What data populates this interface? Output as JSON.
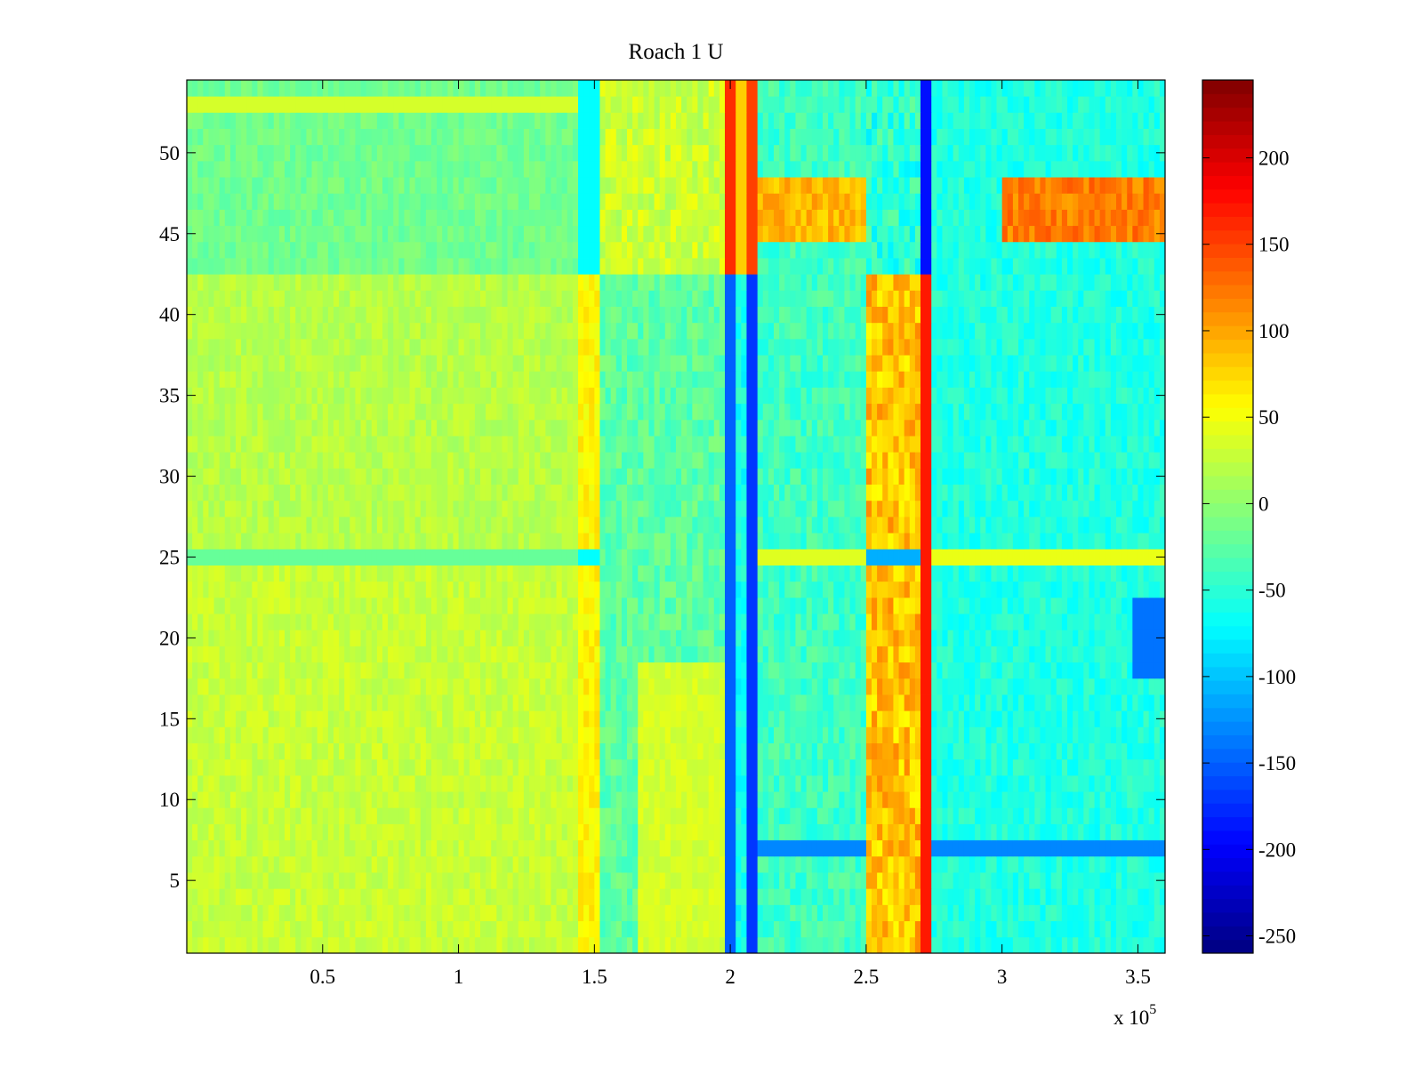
{
  "chart_data": {
    "type": "heatmap",
    "title": "Roach 1 U",
    "xlabel": "",
    "ylabel": "",
    "x_exponent_label": "x 10",
    "x_exponent_power": "5",
    "xlim": [
      0,
      360000
    ],
    "ylim": [
      0.5,
      54.5
    ],
    "x_ticks": [
      50000,
      100000,
      150000,
      200000,
      250000,
      300000,
      350000
    ],
    "x_tick_labels": [
      "0.5",
      "1",
      "1.5",
      "2",
      "2.5",
      "3",
      "3.5"
    ],
    "y_ticks": [
      5,
      10,
      15,
      20,
      25,
      30,
      35,
      40,
      45,
      50
    ],
    "y_tick_labels": [
      "5",
      "10",
      "15",
      "20",
      "25",
      "30",
      "35",
      "40",
      "45",
      "50"
    ],
    "colorbar": {
      "colormap": "jet",
      "clim": [
        -260,
        245
      ],
      "ticks": [
        -250,
        -200,
        -150,
        -100,
        -50,
        0,
        50,
        100,
        150,
        200
      ],
      "tick_labels": [
        "-250",
        "-200",
        "-150",
        "-100",
        "-50",
        "0",
        "50",
        "100",
        "150",
        "200"
      ]
    },
    "rows": 54,
    "segments": [
      {
        "x_range": [
          0,
          145000
        ],
        "typical_value": 20,
        "description": "near-uniform yellow-green with thin periodic vertical stripes"
      },
      {
        "x_range": [
          145000,
          153000
        ],
        "typical_value": 60,
        "description": "orange/yellow band, blue on top rows"
      },
      {
        "x_range": [
          153000,
          198000
        ],
        "typical_value": -20,
        "description": "mixed cyan/green, yellow in upper rows"
      },
      {
        "x_range": [
          198000,
          210000
        ],
        "typical_value": -120,
        "description": "dark blue/red vertical streaks"
      },
      {
        "x_range": [
          210000,
          250000
        ],
        "typical_value": -40,
        "description": "cyan/green, orange rows near 46-48"
      },
      {
        "x_range": [
          250000,
          275000
        ],
        "typical_value": 110,
        "description": "hot orange/red block, red streak near x=272000"
      },
      {
        "x_range": [
          275000,
          360000
        ],
        "typical_value": -50,
        "description": "cyan/light blue, red/orange rows near 46-48 and 25"
      }
    ],
    "grid": false,
    "legend": "colorbar-right"
  }
}
